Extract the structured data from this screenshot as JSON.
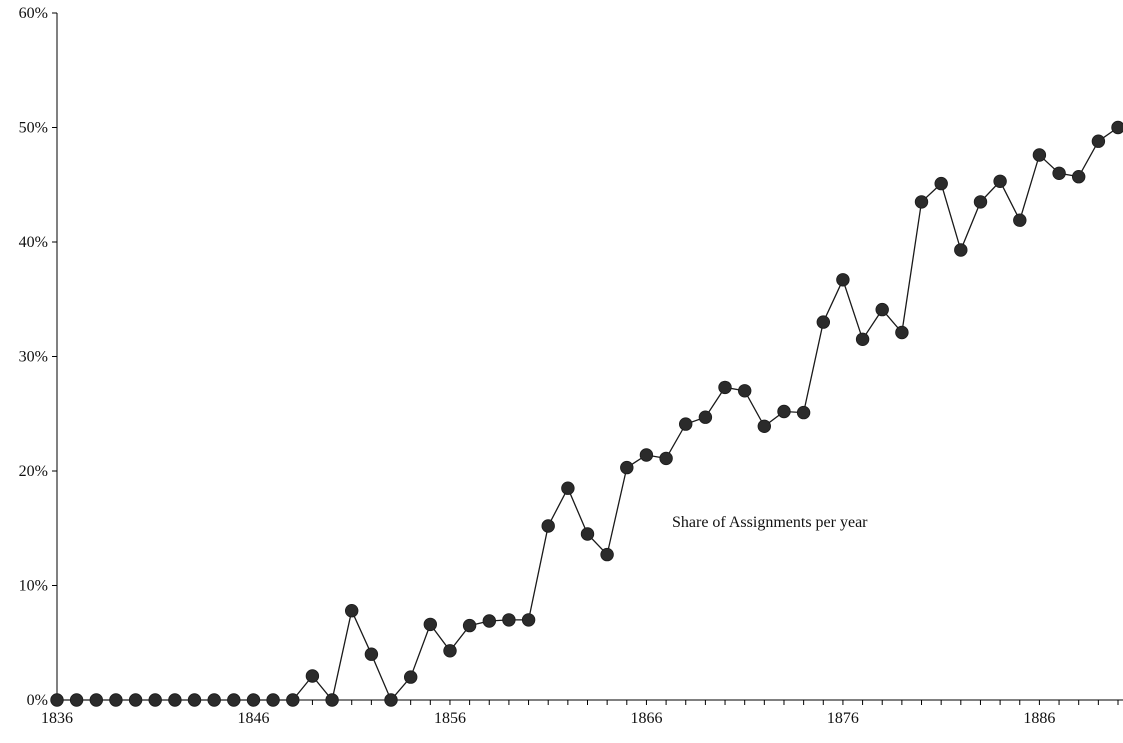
{
  "chart_data": {
    "type": "line",
    "title": "",
    "xlabel": "",
    "ylabel": "",
    "annotation": "Share of Assignments per year",
    "x": [
      1836,
      1837,
      1838,
      1839,
      1840,
      1841,
      1842,
      1843,
      1844,
      1845,
      1846,
      1847,
      1848,
      1849,
      1850,
      1851,
      1852,
      1853,
      1854,
      1855,
      1856,
      1857,
      1858,
      1859,
      1860,
      1861,
      1862,
      1863,
      1864,
      1865,
      1866,
      1867,
      1868,
      1869,
      1870,
      1871,
      1872,
      1873,
      1874,
      1875,
      1876,
      1877,
      1878,
      1879,
      1880,
      1881,
      1882,
      1883,
      1884,
      1885,
      1886,
      1887,
      1888,
      1889,
      1890
    ],
    "series": [
      {
        "values": [
          0,
          0,
          0,
          0,
          0,
          0,
          0,
          0,
          0,
          0,
          0,
          0,
          0,
          2.1,
          0,
          7.8,
          4.0,
          0,
          2.0,
          6.6,
          4.3,
          6.5,
          6.9,
          7.0,
          7.0,
          15.2,
          18.5,
          14.5,
          12.7,
          20.3,
          21.4,
          21.1,
          24.1,
          24.7,
          27.3,
          27.0,
          23.9,
          25.2,
          25.1,
          33.0,
          36.7,
          31.5,
          34.1,
          32.1,
          43.5,
          45.1,
          39.3,
          43.5,
          45.3,
          41.9,
          47.6,
          46.0,
          45.7,
          48.8,
          50.0
        ]
      }
    ],
    "xlim": [
      1836,
      1890
    ],
    "ylim": [
      0,
      60
    ],
    "x_ticks": [
      1836,
      1846,
      1856,
      1866,
      1876,
      1886
    ],
    "x_tick_labels": [
      "1836",
      "1846",
      "1856",
      "1866",
      "1876",
      "1886"
    ],
    "y_ticks": [
      0,
      10,
      20,
      30,
      40,
      50,
      60
    ],
    "y_tick_labels": [
      "0%",
      "10%",
      "20%",
      "30%",
      "40%",
      "50%",
      "60%"
    ],
    "grid": false,
    "legend": "none",
    "colors": {
      "line": "#1a1a1a",
      "marker": "#2b2b2b",
      "axis": "#000000"
    }
  }
}
